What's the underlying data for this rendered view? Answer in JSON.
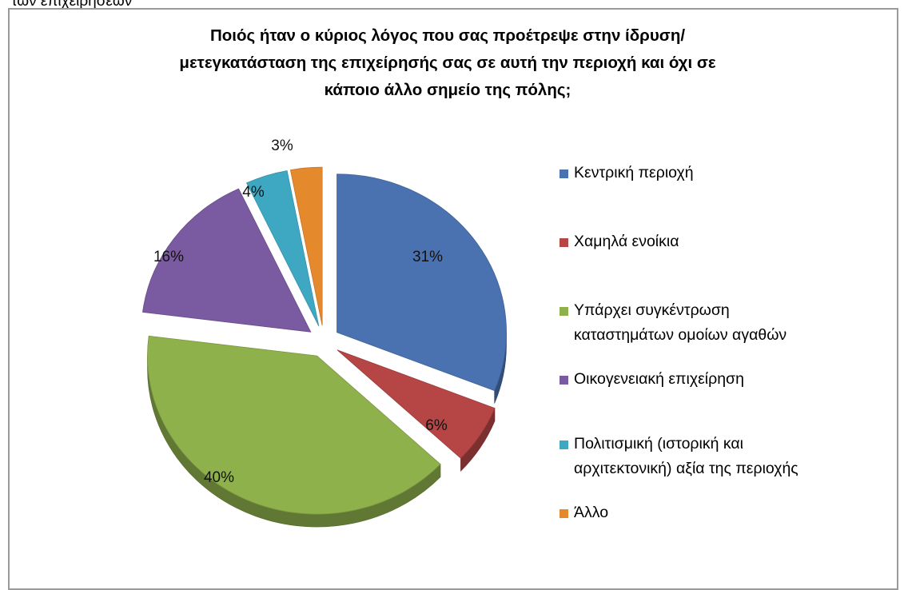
{
  "top_text": "των επιχειρήσεων",
  "chart_data": {
    "type": "pie",
    "title_lines": [
      "Ποιός ήταν ο κύριος λόγος που σας προέτρεψε στην ίδρυση/",
      "μετεγκατάσταση της επιχείρησής σας σε αυτή την περιοχή και όχι σε",
      "κάποιο άλλο σημείο της πόλης;"
    ],
    "categories": [
      "Κεντρική περιοχή",
      "Χαμηλά ενοίκια",
      "Υπάρχει συγκέντρωση καταστημάτων ομοίων αγαθών",
      "Οικογενειακή επιχείρηση",
      "Πολιτισμική (ιστορική και αρχιτεκτονική) αξία της περιοχής",
      "Άλλο"
    ],
    "values": [
      31,
      6,
      40,
      16,
      4,
      3
    ],
    "data_labels": [
      "31%",
      "6%",
      "40%",
      "16%",
      "4%",
      "3%"
    ],
    "colors": [
      "#4a72b0",
      "#b54645",
      "#8fb14c",
      "#7a5aa0",
      "#3ea8c3",
      "#e58a2c"
    ],
    "legend_position": "right",
    "exploded": true
  },
  "legend": {
    "items": [
      {
        "lines": [
          "Κεντρική περιοχή"
        ]
      },
      {
        "lines": [
          "Χαμηλά ενοίκια"
        ]
      },
      {
        "lines": [
          "Υπάρχει συγκέντρωση",
          "καταστημάτων ομοίων αγαθών"
        ]
      },
      {
        "lines": [
          "Οικογενειακή επιχείρηση"
        ]
      },
      {
        "lines": [
          "Πολιτισμική (ιστορική και",
          "αρχιτεκτονική) αξία της περιοχής"
        ]
      },
      {
        "lines": [
          "Άλλο"
        ]
      }
    ]
  }
}
